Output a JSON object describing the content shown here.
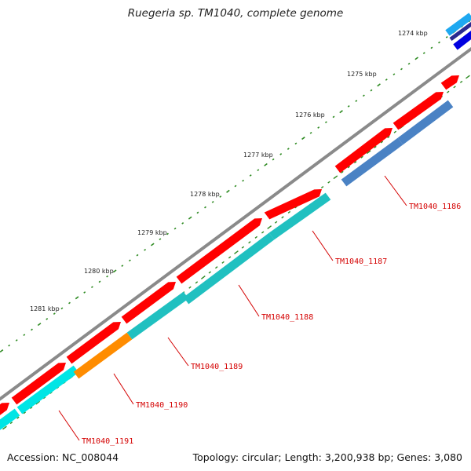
{
  "title": "Ruegeria sp. TM1040, complete genome",
  "footer": {
    "accession": "Accession: NC_008044",
    "summary": "Topology: circular; Length: 3,200,938 bp; Genes: 3,080"
  },
  "colors": {
    "backbone": "#8a8a8a",
    "forward_cds": "#ff0000",
    "tick": "#2e8b22",
    "label": "#d40000",
    "orange": "#ff8c00",
    "cyan": "#00e5e5",
    "teal": "#20c0c0",
    "steel": "#4a82c4",
    "blue": "#0000e0",
    "navy": "#2a2a90",
    "sky": "#1ea8f0"
  },
  "chart_data": {
    "type": "genome-map",
    "ticks_kbp": [
      "1274 kbp",
      "1275 kbp",
      "1276 kbp",
      "1277 kbp",
      "1278 kbp",
      "1279 kbp",
      "1280 kbp",
      "1281 kbp"
    ],
    "gene_labels": [
      "TM1040_1186",
      "TM1040_1187",
      "TM1040_1188",
      "TM1040_1189",
      "TM1040_1190",
      "TM1040_1191"
    ]
  }
}
